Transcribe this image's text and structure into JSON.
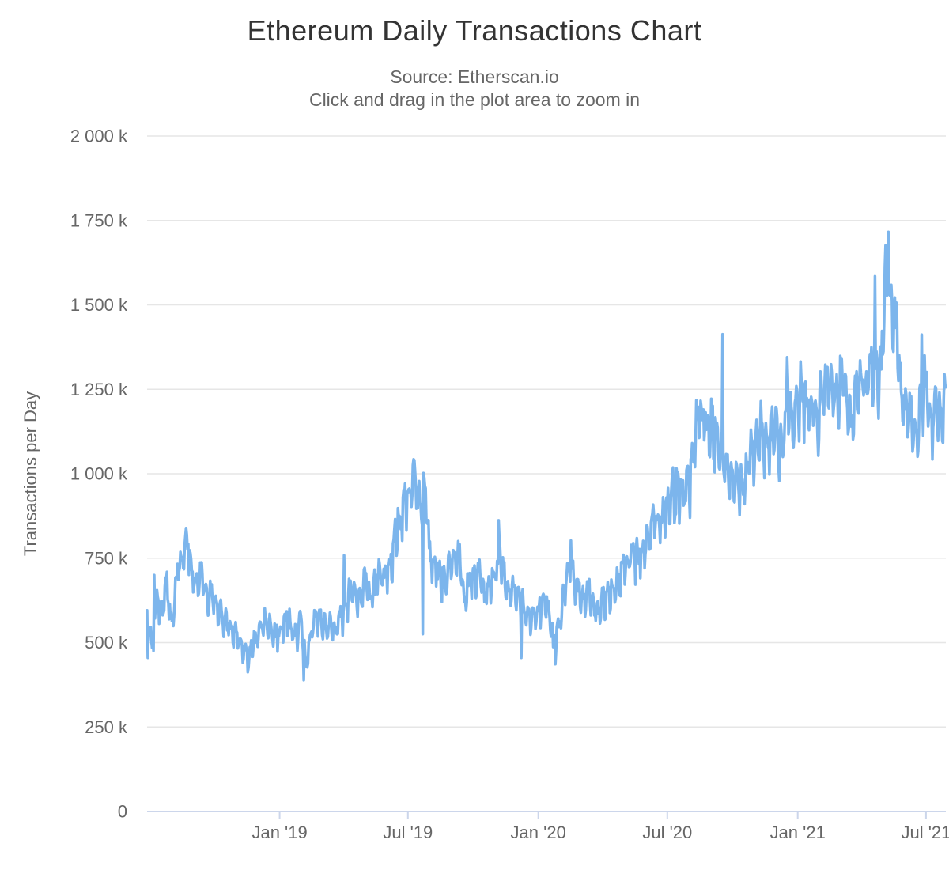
{
  "title": "Ethereum Daily Transactions Chart",
  "subtitle_line1": "Source: Etherscan.io",
  "subtitle_line2": "Click and drag in the plot area to zoom in",
  "colors": {
    "background": "#ffffff",
    "series_line": "#7cb5ec",
    "axis_line": "#ccd6eb",
    "tick_mark": "#ccd6eb",
    "grid_line": "#e6e6e6",
    "axis_label": "#666666",
    "title_text": "#333333",
    "subtitle_text": "#666666"
  },
  "chart_data": {
    "type": "line",
    "series_name": "Ethereum Daily Transactions",
    "xlabel": "",
    "ylabel": "Transactions per Day",
    "legend": false,
    "grid": true,
    "x_range": [
      "2018-06-28",
      "2021-07-29"
    ],
    "ylim_k": [
      0,
      2000
    ],
    "y_tick_interval_k": 250,
    "y_ticks": [
      {
        "value_k": 0,
        "label": "0"
      },
      {
        "value_k": 250,
        "label": "250 k"
      },
      {
        "value_k": 500,
        "label": "500 k"
      },
      {
        "value_k": 750,
        "label": "750 k"
      },
      {
        "value_k": 1000,
        "label": "1 000 k"
      },
      {
        "value_k": 1250,
        "label": "1 250 k"
      },
      {
        "value_k": 1500,
        "label": "1 500 k"
      },
      {
        "value_k": 1750,
        "label": "1 750 k"
      },
      {
        "value_k": 2000,
        "label": "2 000 k"
      }
    ],
    "x_ticks": [
      {
        "date": "2019-01-01",
        "label": "Jan '19"
      },
      {
        "date": "2019-07-01",
        "label": "Jul '19"
      },
      {
        "date": "2020-01-01",
        "label": "Jan '20"
      },
      {
        "date": "2020-07-01",
        "label": "Jul '20"
      },
      {
        "date": "2021-01-01",
        "label": "Jan '21"
      },
      {
        "date": "2021-07-01",
        "label": "Jul '21"
      }
    ],
    "weekly_values_k_start": "2018-06-28",
    "weekly_values_k": [
      600,
      480,
      640,
      600,
      665,
      545,
      700,
      755,
      790,
      720,
      655,
      700,
      625,
      645,
      610,
      580,
      565,
      545,
      525,
      490,
      452,
      480,
      520,
      550,
      560,
      530,
      505,
      545,
      570,
      550,
      520,
      560,
      430,
      530,
      570,
      555,
      540,
      560,
      530,
      580,
      600,
      660,
      640,
      635,
      680,
      640,
      700,
      700,
      700,
      720,
      820,
      860,
      920,
      940,
      985,
      905,
      955,
      760,
      720,
      700,
      690,
      730,
      740,
      755,
      620,
      700,
      690,
      720,
      650,
      680,
      690,
      760,
      700,
      640,
      660,
      640,
      600,
      560,
      580,
      600,
      620,
      590,
      500,
      560,
      640,
      740,
      680,
      650,
      620,
      670,
      600,
      590,
      620,
      650,
      660,
      680,
      720,
      750,
      760,
      740,
      770,
      800,
      860,
      840,
      870,
      900,
      940,
      960,
      930,
      980,
      1060,
      1160,
      1170,
      1130,
      1160,
      1100,
      1060,
      1020,
      990,
      970,
      960,
      1040,
      1060,
      1090,
      1120,
      1070,
      1140,
      1130,
      1060,
      1240,
      1140,
      1210,
      1260,
      1170,
      1210,
      1150,
      1240,
      1290,
      1260,
      1200,
      1300,
      1230,
      1140,
      1260,
      1270,
      1230,
      1340,
      1280,
      1340,
      1600,
      1460,
      1430,
      1260,
      1160,
      1190,
      1110,
      1200,
      1260,
      1140,
      1200,
      1150,
      1245
    ],
    "notable_points_k": [
      {
        "date": "2018-06-29",
        "value_k": 455
      },
      {
        "date": "2018-07-08",
        "value_k": 700
      },
      {
        "date": "2018-08-25",
        "value_k": 792
      },
      {
        "date": "2019-02-04",
        "value_k": 389
      },
      {
        "date": "2019-04-02",
        "value_k": 758
      },
      {
        "date": "2019-07-11",
        "value_k": 1008
      },
      {
        "date": "2019-07-22",
        "value_k": 525
      },
      {
        "date": "2019-11-06",
        "value_k": 862
      },
      {
        "date": "2019-12-08",
        "value_k": 455
      },
      {
        "date": "2020-01-25",
        "value_k": 436
      },
      {
        "date": "2020-02-16",
        "value_k": 802
      },
      {
        "date": "2020-08-02",
        "value_k": 870
      },
      {
        "date": "2020-09-17",
        "value_k": 1413
      },
      {
        "date": "2020-12-17",
        "value_k": 1345
      },
      {
        "date": "2021-04-20",
        "value_k": 1585
      },
      {
        "date": "2021-05-09",
        "value_k": 1716
      },
      {
        "date": "2021-06-25",
        "value_k": 1412
      },
      {
        "date": "2021-06-29",
        "value_k": 1350
      },
      {
        "date": "2021-07-29",
        "value_k": 1256
      }
    ],
    "render_hints": {
      "seed": 1337,
      "daily_noise": 0.06,
      "weekday_factors": [
        0.03,
        0.0,
        -0.055,
        -0.06,
        0.01,
        0.04,
        0.035
      ],
      "spike_chance": 0.04,
      "spike_scale": 0.16
    }
  }
}
